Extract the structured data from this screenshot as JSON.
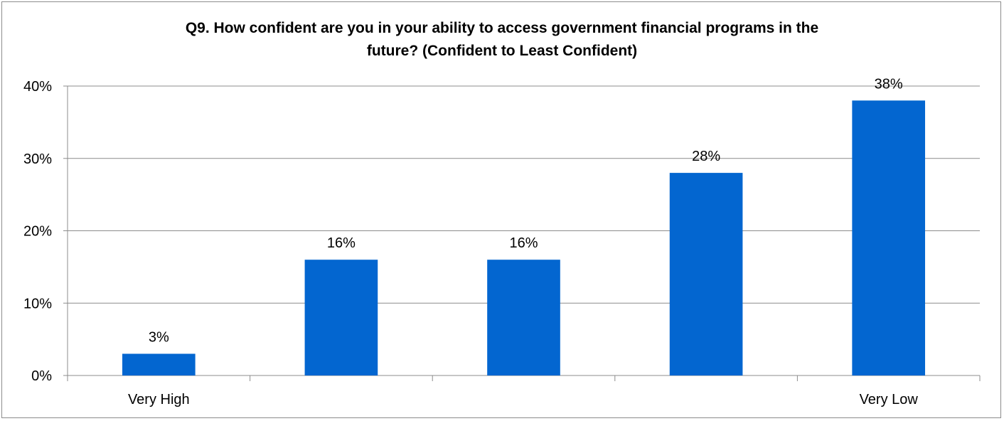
{
  "chart_data": {
    "type": "bar",
    "title_lines": [
      "Q9. How confident are you in your ability to access government financial programs in the",
      "future? (Confident to Least Confident)"
    ],
    "categories": [
      "Very High",
      "",
      "",
      "",
      "Very Low"
    ],
    "values": [
      3,
      16,
      16,
      28,
      38
    ],
    "data_labels": [
      "3%",
      "16%",
      "16%",
      "28%",
      "38%"
    ],
    "y_ticks": [
      0,
      10,
      20,
      30,
      40
    ],
    "y_tick_labels": [
      "0%",
      "10%",
      "20%",
      "30%",
      "40%"
    ],
    "ylim": [
      0,
      40
    ],
    "xlabel": "",
    "ylabel": "",
    "grid": true,
    "legend": "none",
    "bar_color": "#0366D0",
    "grid_color": "#8c8c8c"
  }
}
